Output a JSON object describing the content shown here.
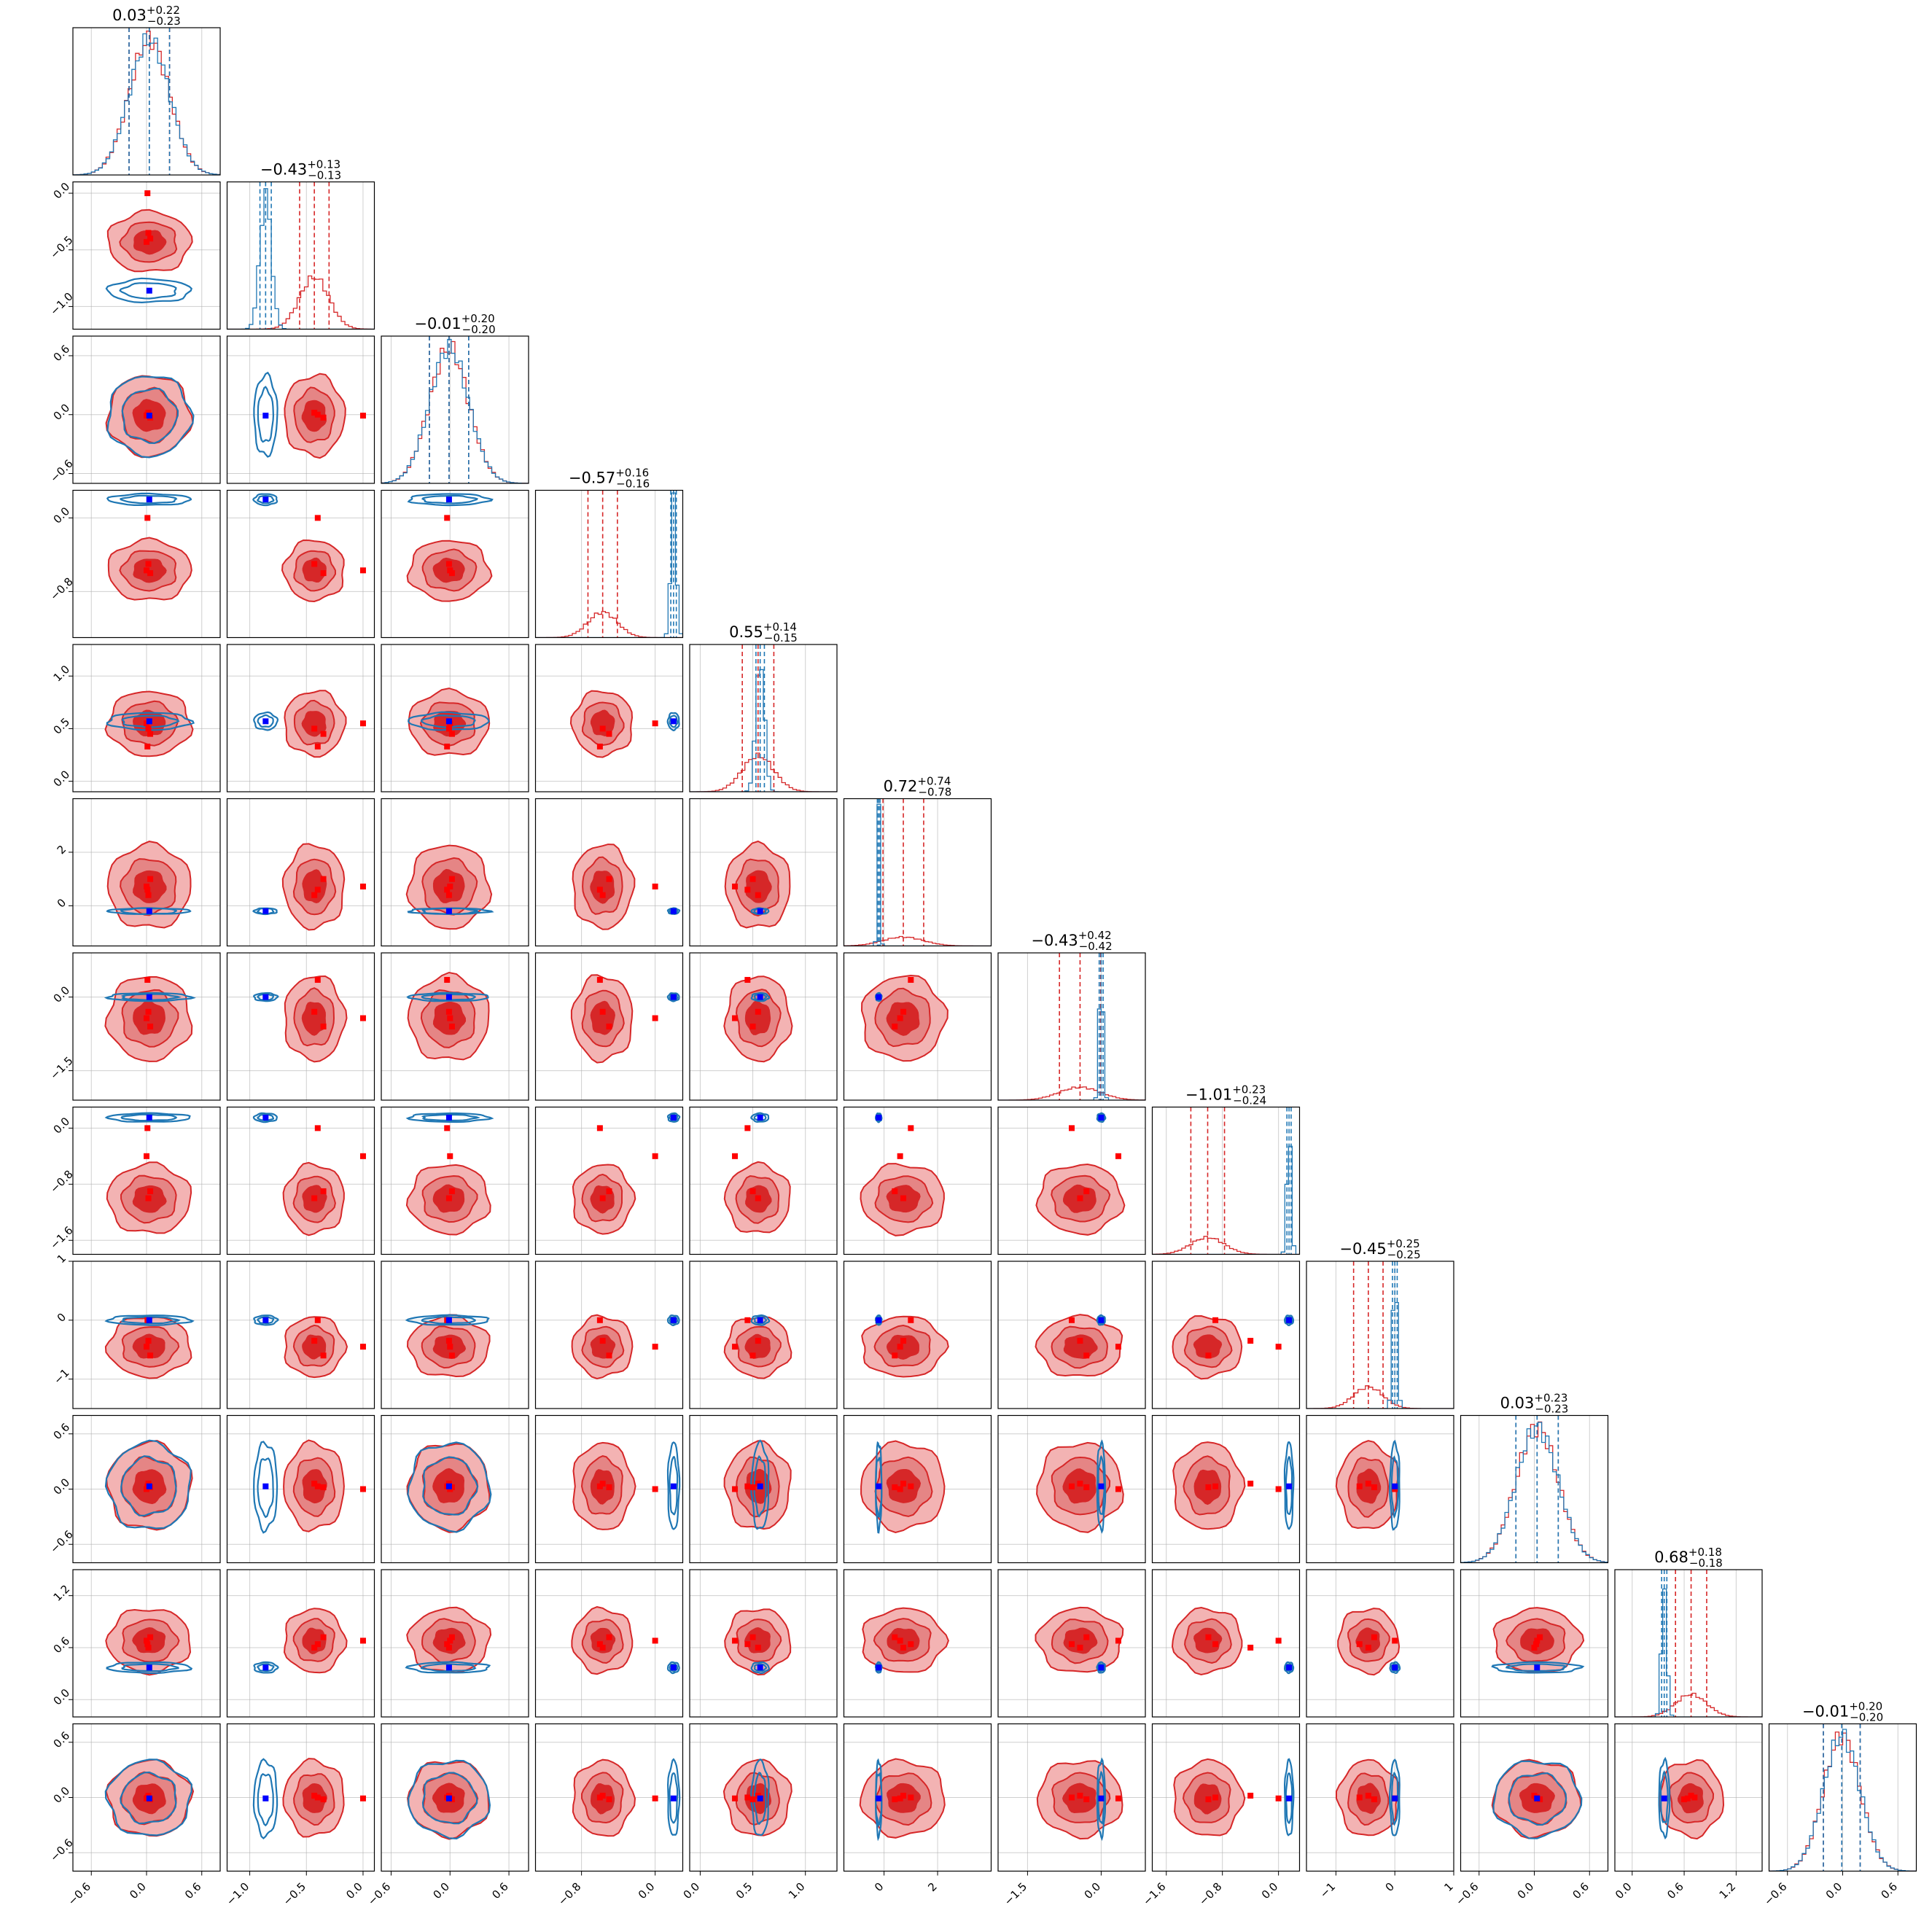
{
  "chart_data": {
    "type": "corner",
    "n_params": 12,
    "series": [
      {
        "color": "#d62728"
      },
      {
        "color": "#1f77b4"
      }
    ],
    "marker_colors": {
      "red": "#ff0000",
      "blue": "#0000ff"
    },
    "grid": true,
    "titles": [
      {
        "median": "0.03",
        "plus": "+0.22",
        "minus": "−0.23"
      },
      {
        "median": "−0.43",
        "plus": "+0.13",
        "minus": "−0.13"
      },
      {
        "median": "−0.01",
        "plus": "+0.20",
        "minus": "−0.20"
      },
      {
        "median": "−0.57",
        "plus": "+0.16",
        "minus": "−0.16"
      },
      {
        "median": "0.55",
        "plus": "+0.14",
        "minus": "−0.15"
      },
      {
        "median": "0.72",
        "plus": "+0.74",
        "minus": "−0.78"
      },
      {
        "median": "−0.43",
        "plus": "+0.42",
        "minus": "−0.42"
      },
      {
        "median": "−1.01",
        "plus": "+0.23",
        "minus": "−0.24"
      },
      {
        "median": "−0.45",
        "plus": "+0.25",
        "minus": "−0.25"
      },
      {
        "median": "0.03",
        "plus": "+0.23",
        "minus": "−0.23"
      },
      {
        "median": "0.68",
        "plus": "+0.18",
        "minus": "−0.18"
      },
      {
        "median": "−0.01",
        "plus": "+0.20",
        "minus": "−0.20"
      }
    ],
    "params": [
      {
        "range": [
          -0.8,
          0.8
        ],
        "ticks": [
          -0.6,
          0.0,
          0.6
        ],
        "tick_labels": [
          "−0.6",
          "0.0",
          "0.6"
        ],
        "red": {
          "mean": 0.03,
          "sd": 0.22
        },
        "blue": {
          "mean": 0.03,
          "sd": 0.22
        },
        "red_marks": [
          0.0,
          0.02,
          0.04,
          0.01
        ],
        "blue_mark": 0.03
      },
      {
        "range": [
          -1.2,
          0.1
        ],
        "ticks": [
          -1.0,
          -0.5,
          0.0
        ],
        "tick_labels": [
          "−1.0",
          "−0.5",
          "0.0"
        ],
        "red": {
          "mean": -0.43,
          "sd": 0.13
        },
        "blue": {
          "mean": -0.86,
          "sd": 0.05
        },
        "red_marks": [
          0.0,
          -0.43,
          -0.35,
          -0.4
        ],
        "blue_mark": -0.86
      },
      {
        "range": [
          -0.7,
          0.8
        ],
        "ticks": [
          -0.6,
          0.0,
          0.6
        ],
        "tick_labels": [
          "−0.6",
          "0.0",
          "0.6"
        ],
        "red": {
          "mean": -0.01,
          "sd": 0.2
        },
        "blue": {
          "mean": -0.01,
          "sd": 0.2
        },
        "red_marks": [
          0.0,
          -0.01,
          0.02,
          -0.03
        ],
        "blue_mark": -0.01
      },
      {
        "range": [
          -1.3,
          0.3
        ],
        "ticks": [
          -0.8,
          0.0
        ],
        "tick_labels": [
          "−0.8",
          "0.0"
        ],
        "red": {
          "mean": -0.57,
          "sd": 0.16
        },
        "blue": {
          "mean": 0.2,
          "sd": 0.03
        },
        "red_marks": [
          0.0,
          -0.57,
          -0.5,
          -0.6
        ],
        "blue_mark": 0.2
      },
      {
        "range": [
          -0.1,
          1.3
        ],
        "ticks": [
          0.0,
          0.5,
          1.0
        ],
        "tick_labels": [
          "0.0",
          "0.5",
          "1.0"
        ],
        "red": {
          "mean": 0.55,
          "sd": 0.15
        },
        "blue": {
          "mean": 0.57,
          "sd": 0.04
        },
        "red_marks": [
          0.33,
          0.55,
          0.5,
          0.45
        ],
        "blue_mark": 0.57
      },
      {
        "range": [
          -1.5,
          4.0
        ],
        "ticks": [
          0,
          2
        ],
        "tick_labels": [
          "0",
          "2"
        ],
        "red": {
          "mean": 0.72,
          "sd": 0.76
        },
        "blue": {
          "mean": -0.2,
          "sd": 0.05
        },
        "red_marks": [
          0.6,
          0.72,
          0.4,
          1.0
        ],
        "blue_mark": -0.2
      },
      {
        "range": [
          -2.1,
          0.9
        ],
        "ticks": [
          -1.5,
          0.0
        ],
        "tick_labels": [
          "−1.5",
          "0.0"
        ],
        "red": {
          "mean": -0.43,
          "sd": 0.42
        },
        "blue": {
          "mean": 0.0,
          "sd": 0.04
        },
        "red_marks": [
          0.35,
          -0.43,
          -0.3,
          -0.6
        ],
        "blue_mark": 0.0
      },
      {
        "range": [
          -1.8,
          0.3
        ],
        "ticks": [
          -1.6,
          -0.8,
          0.0
        ],
        "tick_labels": [
          "−1.6",
          "−0.8",
          "0.0"
        ],
        "red": {
          "mean": -1.01,
          "sd": 0.24
        },
        "blue": {
          "mean": 0.15,
          "sd": 0.03
        },
        "red_marks": [
          0.0,
          -0.4,
          -1.0,
          -0.9
        ],
        "blue_mark": 0.15
      },
      {
        "range": [
          -1.5,
          1.0
        ],
        "ticks": [
          -1,
          0,
          1
        ],
        "tick_labels": [
          "−1",
          "0",
          "1"
        ],
        "red": {
          "mean": -0.45,
          "sd": 0.25
        },
        "blue": {
          "mean": 0.0,
          "sd": 0.04
        },
        "red_marks": [
          0.0,
          -0.45,
          -0.35,
          -0.6
        ],
        "blue_mark": 0.0
      },
      {
        "range": [
          -0.8,
          0.8
        ],
        "ticks": [
          -0.6,
          0.0,
          0.6
        ],
        "tick_labels": [
          "−0.6",
          "0.0",
          "0.6"
        ],
        "red": {
          "mean": 0.03,
          "sd": 0.23
        },
        "blue": {
          "mean": 0.03,
          "sd": 0.23
        },
        "red_marks": [
          0.03,
          0.0,
          0.06,
          0.02
        ],
        "blue_mark": 0.03
      },
      {
        "range": [
          -0.2,
          1.5
        ],
        "ticks": [
          0.0,
          0.6,
          1.2
        ],
        "tick_labels": [
          "0.0",
          "0.6",
          "1.2"
        ],
        "red": {
          "mean": 0.68,
          "sd": 0.18
        },
        "blue": {
          "mean": 0.37,
          "sd": 0.03
        },
        "red_marks": [
          0.64,
          0.68,
          0.6,
          0.72
        ],
        "blue_mark": 0.37
      },
      {
        "range": [
          -0.8,
          0.8
        ],
        "ticks": [
          -0.6,
          0.0,
          0.6
        ],
        "tick_labels": [
          "−0.6",
          "0.0",
          "0.6"
        ],
        "red": {
          "mean": -0.01,
          "sd": 0.2
        },
        "blue": {
          "mean": -0.01,
          "sd": 0.2
        },
        "red_marks": [
          0.0,
          -0.01,
          0.02,
          -0.02
        ],
        "blue_mark": -0.01
      }
    ]
  }
}
